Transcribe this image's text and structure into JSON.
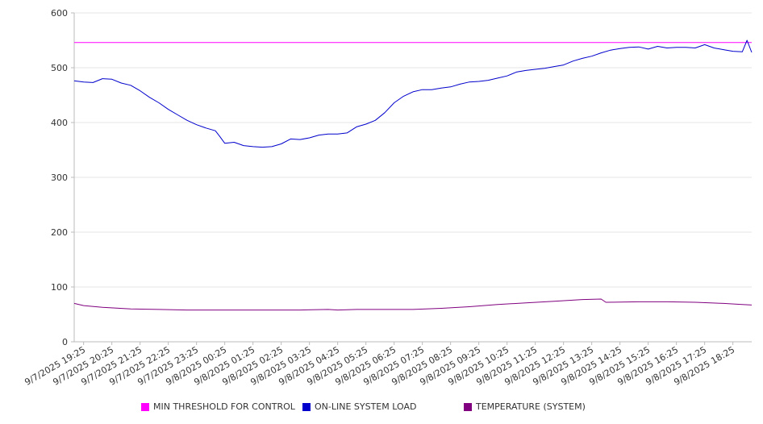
{
  "chart_data": {
    "type": "line",
    "title": "",
    "xlabel": "",
    "ylabel": "",
    "ylim": [
      0,
      600
    ],
    "y_ticks": [
      0,
      100,
      200,
      300,
      400,
      500,
      600
    ],
    "x_ticks": [
      "9/7/2025 19:25",
      "9/7/2025 20:25",
      "9/7/2025 21:25",
      "9/7/2025 22:25",
      "9/7/2025 23:25",
      "9/8/2025 00:25",
      "9/8/2025 01:25",
      "9/8/2025 02:25",
      "9/8/2025 03:25",
      "9/8/2025 04:25",
      "9/8/2025 05:25",
      "9/8/2025 06:25",
      "9/8/2025 07:25",
      "9/8/2025 08:25",
      "9/8/2025 09:25",
      "9/8/2025 10:25",
      "9/8/2025 11:25",
      "9/8/2025 12:25",
      "9/8/2025 13:25",
      "9/8/2025 14:25",
      "9/8/2025 15:25",
      "9/8/2025 16:25",
      "9/8/2025 17:25",
      "9/8/2025 18:25"
    ],
    "x_start": "9/7/2025 19:05",
    "x_end": "9/8/2025 19:05",
    "grid": true,
    "legend_position": "bottom",
    "series": [
      {
        "name": "MIN THRESHOLD FOR CONTROL",
        "color": "#ff00ff",
        "points": [
          [
            "9/7/2025 19:05",
            546
          ],
          [
            "9/8/2025 19:05",
            546
          ]
        ]
      },
      {
        "name": "ON-LINE SYSTEM LOAD",
        "color": "#0000cc",
        "points": [
          [
            "9/7/2025 19:05",
            476
          ],
          [
            "9/7/2025 19:25",
            474
          ],
          [
            "9/7/2025 19:45",
            473
          ],
          [
            "9/7/2025 20:05",
            480
          ],
          [
            "9/7/2025 20:25",
            479
          ],
          [
            "9/7/2025 20:45",
            472
          ],
          [
            "9/7/2025 21:05",
            468
          ],
          [
            "9/7/2025 21:25",
            458
          ],
          [
            "9/7/2025 21:45",
            446
          ],
          [
            "9/7/2025 22:05",
            436
          ],
          [
            "9/7/2025 22:25",
            424
          ],
          [
            "9/7/2025 22:45",
            414
          ],
          [
            "9/7/2025 23:05",
            404
          ],
          [
            "9/7/2025 23:25",
            396
          ],
          [
            "9/7/2025 23:45",
            390
          ],
          [
            "9/8/2025 00:05",
            385
          ],
          [
            "9/8/2025 00:15",
            374
          ],
          [
            "9/8/2025 00:25",
            362
          ],
          [
            "9/8/2025 00:45",
            364
          ],
          [
            "9/8/2025 01:05",
            358
          ],
          [
            "9/8/2025 01:25",
            356
          ],
          [
            "9/8/2025 01:45",
            355
          ],
          [
            "9/8/2025 02:05",
            356
          ],
          [
            "9/8/2025 02:25",
            361
          ],
          [
            "9/8/2025 02:45",
            370
          ],
          [
            "9/8/2025 03:05",
            369
          ],
          [
            "9/8/2025 03:25",
            372
          ],
          [
            "9/8/2025 03:45",
            377
          ],
          [
            "9/8/2025 04:05",
            379
          ],
          [
            "9/8/2025 04:25",
            379
          ],
          [
            "9/8/2025 04:45",
            381
          ],
          [
            "9/8/2025 05:05",
            392
          ],
          [
            "9/8/2025 05:25",
            397
          ],
          [
            "9/8/2025 05:45",
            404
          ],
          [
            "9/8/2025 06:05",
            418
          ],
          [
            "9/8/2025 06:25",
            436
          ],
          [
            "9/8/2025 06:45",
            448
          ],
          [
            "9/8/2025 07:05",
            456
          ],
          [
            "9/8/2025 07:25",
            460
          ],
          [
            "9/8/2025 07:45",
            460
          ],
          [
            "9/8/2025 08:05",
            463
          ],
          [
            "9/8/2025 08:25",
            465
          ],
          [
            "9/8/2025 08:45",
            470
          ],
          [
            "9/8/2025 09:05",
            474
          ],
          [
            "9/8/2025 09:25",
            475
          ],
          [
            "9/8/2025 09:45",
            477
          ],
          [
            "9/8/2025 10:05",
            481
          ],
          [
            "9/8/2025 10:25",
            485
          ],
          [
            "9/8/2025 10:45",
            492
          ],
          [
            "9/8/2025 11:05",
            495
          ],
          [
            "9/8/2025 11:25",
            497
          ],
          [
            "9/8/2025 11:45",
            499
          ],
          [
            "9/8/2025 12:05",
            502
          ],
          [
            "9/8/2025 12:25",
            505
          ],
          [
            "9/8/2025 12:45",
            512
          ],
          [
            "9/8/2025 13:05",
            517
          ],
          [
            "9/8/2025 13:25",
            521
          ],
          [
            "9/8/2025 13:45",
            527
          ],
          [
            "9/8/2025 14:05",
            532
          ],
          [
            "9/8/2025 14:25",
            535
          ],
          [
            "9/8/2025 14:45",
            537
          ],
          [
            "9/8/2025 15:05",
            538
          ],
          [
            "9/8/2025 15:25",
            534
          ],
          [
            "9/8/2025 15:45",
            539
          ],
          [
            "9/8/2025 16:05",
            536
          ],
          [
            "9/8/2025 16:25",
            537
          ],
          [
            "9/8/2025 16:45",
            537
          ],
          [
            "9/8/2025 17:05",
            536
          ],
          [
            "9/8/2025 17:25",
            542
          ],
          [
            "9/8/2025 17:45",
            536
          ],
          [
            "9/8/2025 18:05",
            533
          ],
          [
            "9/8/2025 18:25",
            530
          ],
          [
            "9/8/2025 18:45",
            529
          ],
          [
            "9/8/2025 18:55",
            550
          ],
          [
            "9/8/2025 19:05",
            528
          ]
        ]
      },
      {
        "name": "TEMPERATURE (SYSTEM)",
        "color": "#800080",
        "points": [
          [
            "9/7/2025 19:05",
            70
          ],
          [
            "9/7/2025 19:25",
            66
          ],
          [
            "9/7/2025 20:05",
            63
          ],
          [
            "9/7/2025 21:05",
            60
          ],
          [
            "9/7/2025 22:05",
            59
          ],
          [
            "9/7/2025 23:05",
            58
          ],
          [
            "9/8/2025 01:05",
            58
          ],
          [
            "9/8/2025 03:05",
            58
          ],
          [
            "9/8/2025 04:05",
            59
          ],
          [
            "9/8/2025 04:25",
            58
          ],
          [
            "9/8/2025 05:05",
            59
          ],
          [
            "9/8/2025 07:05",
            59
          ],
          [
            "9/8/2025 08:05",
            61
          ],
          [
            "9/8/2025 09:05",
            64
          ],
          [
            "9/8/2025 10:05",
            68
          ],
          [
            "9/8/2025 11:05",
            71
          ],
          [
            "9/8/2025 12:05",
            74
          ],
          [
            "9/8/2025 13:05",
            77
          ],
          [
            "9/8/2025 13:45",
            78
          ],
          [
            "9/8/2025 13:55",
            72
          ],
          [
            "9/8/2025 15:05",
            73
          ],
          [
            "9/8/2025 16:05",
            73
          ],
          [
            "9/8/2025 17:05",
            72
          ],
          [
            "9/8/2025 18:05",
            70
          ],
          [
            "9/8/2025 18:45",
            68
          ],
          [
            "9/8/2025 19:05",
            67
          ]
        ]
      }
    ]
  }
}
